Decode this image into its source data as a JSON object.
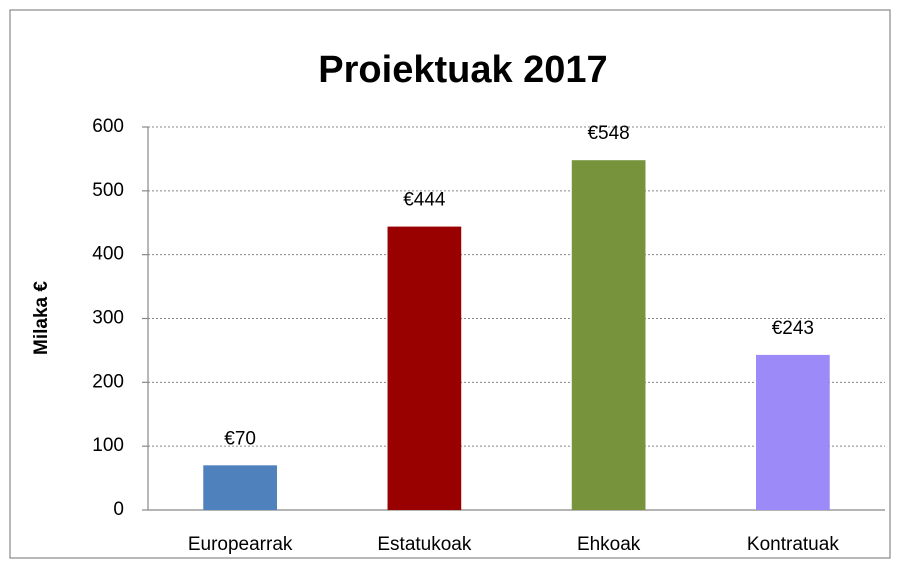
{
  "chart_data": {
    "type": "bar",
    "title": "Proiektuak 2017",
    "y_label": "Milaka €",
    "categories": [
      "Europearrak",
      "Estatukoak",
      "Ehkoak",
      "Kontratuak"
    ],
    "values": [
      70,
      444,
      548,
      243
    ],
    "value_labels": [
      "€70",
      "€444",
      "€548",
      "€243"
    ],
    "colors": [
      "#4f81bd",
      "#990000",
      "#77933c",
      "#9b8af7"
    ],
    "ylim": [
      0,
      600
    ],
    "yticks": [
      0,
      100,
      200,
      300,
      400,
      500,
      600
    ],
    "grid": true
  }
}
